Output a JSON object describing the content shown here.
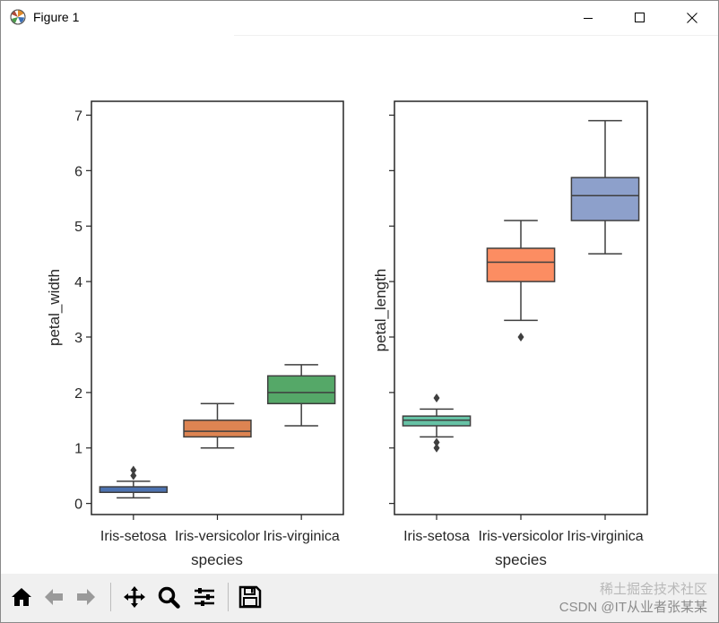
{
  "window": {
    "title": "Figure 1",
    "app_icon": "matplotlib-icon",
    "controls": [
      "minimize-icon",
      "maximize-icon",
      "close-icon"
    ]
  },
  "toolbar": {
    "buttons": [
      "home-icon",
      "back-arrow-icon",
      "forward-arrow-icon",
      "pan-icon",
      "zoom-icon",
      "configure-subplots-icon",
      "save-icon"
    ]
  },
  "watermark": {
    "line1": "稀土掘金技术社区",
    "line2": "CSDN @IT从业者张某某"
  },
  "chart_data": [
    {
      "type": "box",
      "categories": [
        "Iris-setosa",
        "Iris-versicolor",
        "Iris-virginica"
      ],
      "xlabel": "species",
      "ylabel": "petal_width",
      "ylim": [
        -0.2,
        7.25
      ],
      "yticks": [
        0,
        1,
        2,
        3,
        4,
        5,
        6,
        7
      ],
      "colors": [
        "#4c72b0",
        "#dd8452",
        "#55a868"
      ],
      "boxes": [
        {
          "category": "Iris-setosa",
          "whislo": 0.1,
          "q1": 0.2,
          "median": 0.2,
          "q3": 0.3,
          "whishi": 0.4,
          "fliers": [
            0.5,
            0.6
          ]
        },
        {
          "category": "Iris-versicolor",
          "whislo": 1.0,
          "q1": 1.2,
          "median": 1.3,
          "q3": 1.5,
          "whishi": 1.8,
          "fliers": []
        },
        {
          "category": "Iris-virginica",
          "whislo": 1.4,
          "q1": 1.8,
          "median": 2.0,
          "q3": 2.3,
          "whishi": 2.5,
          "fliers": []
        }
      ]
    },
    {
      "type": "box",
      "categories": [
        "Iris-setosa",
        "Iris-versicolor",
        "Iris-virginica"
      ],
      "xlabel": "species",
      "ylabel": "petal_length",
      "ylim": [
        -0.2,
        7.25
      ],
      "sharey": true,
      "colors": [
        "#66c2a5",
        "#fc8d62",
        "#8da0cb"
      ],
      "boxes": [
        {
          "category": "Iris-setosa",
          "whislo": 1.2,
          "q1": 1.4,
          "median": 1.5,
          "q3": 1.575,
          "whishi": 1.7,
          "fliers": [
            1.0,
            1.1,
            1.9
          ]
        },
        {
          "category": "Iris-versicolor",
          "whislo": 3.3,
          "q1": 4.0,
          "median": 4.35,
          "q3": 4.6,
          "whishi": 5.1,
          "fliers": [
            3.0
          ]
        },
        {
          "category": "Iris-virginica",
          "whislo": 4.5,
          "q1": 5.1,
          "median": 5.55,
          "q3": 5.875,
          "whishi": 6.9,
          "fliers": []
        }
      ]
    }
  ]
}
